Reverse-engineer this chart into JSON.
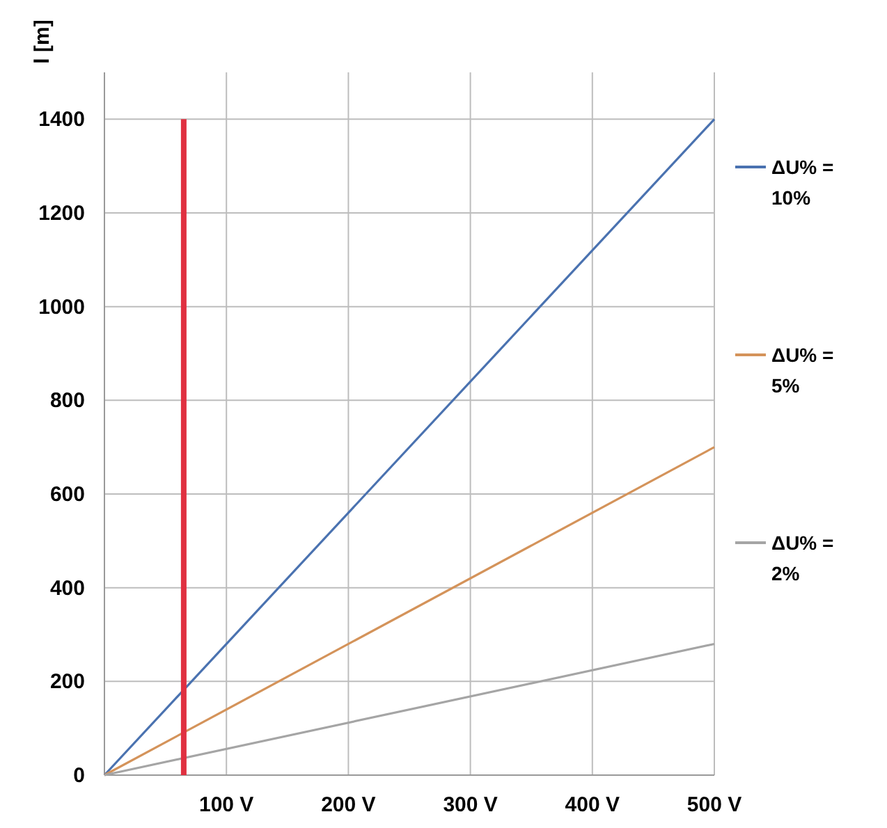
{
  "chart_data": {
    "type": "line",
    "ylabel": "l [m]",
    "xlim": [
      0,
      500
    ],
    "ylim": [
      0,
      1500
    ],
    "xticks": [
      {
        "value": 0,
        "label": null
      },
      {
        "value": 100,
        "label": "100 V"
      },
      {
        "value": 200,
        "label": "200 V"
      },
      {
        "value": 300,
        "label": "300 V"
      },
      {
        "value": 400,
        "label": "400 V"
      },
      {
        "value": 500,
        "label": "500 V"
      }
    ],
    "yticks": [
      0,
      200,
      400,
      600,
      800,
      1000,
      1200,
      1400
    ],
    "grid": true,
    "legend": "right",
    "marker": "none",
    "line_style": "solid",
    "series": [
      {
        "name": "ΔU% = 10%",
        "color": "#4a72b0",
        "x": [
          0,
          500
        ],
        "values": [
          0,
          1400
        ]
      },
      {
        "name": "ΔU% = 5%",
        "color": "#d4935a",
        "x": [
          0,
          500
        ],
        "values": [
          0,
          700
        ]
      },
      {
        "name": "ΔU% = 2%",
        "color": "#a5a5a5",
        "x": [
          0,
          500
        ],
        "values": [
          0,
          280
        ]
      },
      {
        "color": "#e03040",
        "x": [
          65,
          65
        ],
        "values": [
          0,
          1400
        ]
      }
    ]
  }
}
